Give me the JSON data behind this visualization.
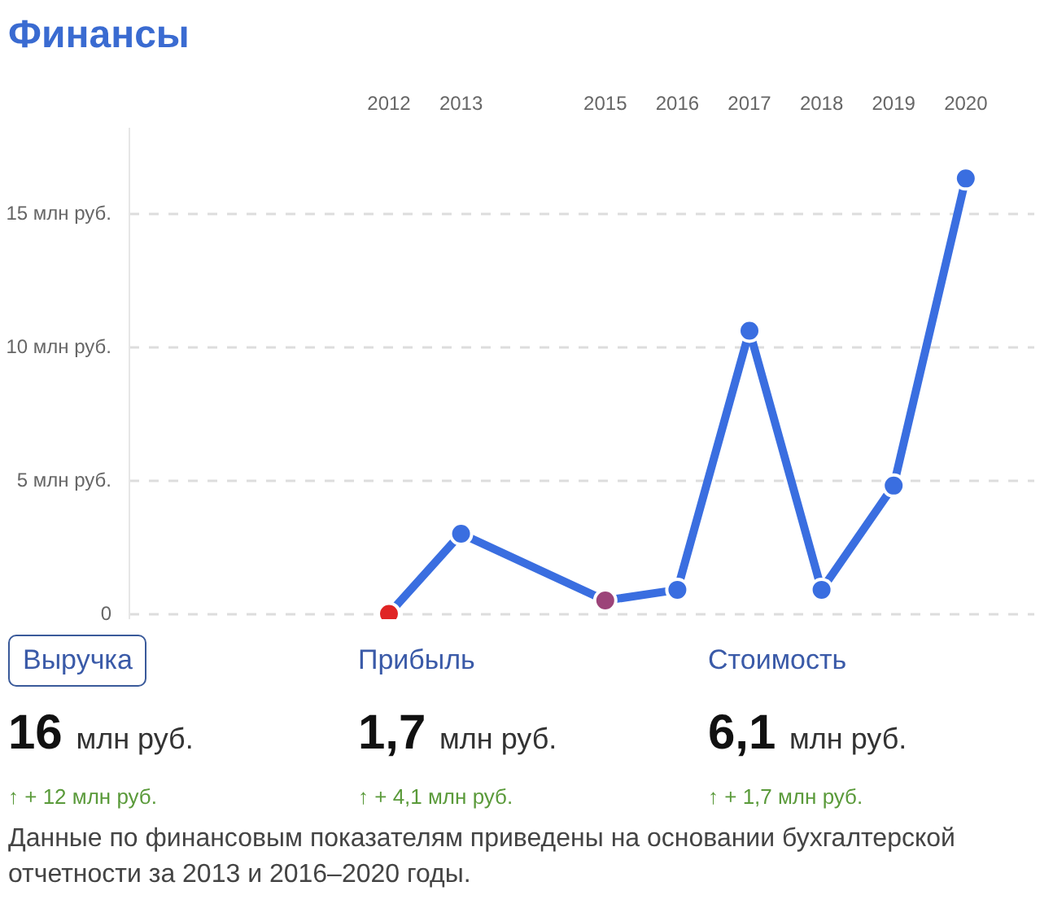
{
  "chart_data": {
    "type": "line",
    "title": "Финансы",
    "x": [
      2012,
      2013,
      2015,
      2016,
      2017,
      2018,
      2019,
      2020
    ],
    "series": [
      {
        "color": "#3a6ee0",
        "colors": [
          "#e02424",
          "#3a6ee0",
          "#9c4479",
          "#3a6ee0",
          "#3a6ee0",
          "#3a6ee0",
          "#3a6ee0",
          "#3a6ee0"
        ],
        "values": [
          0,
          3.0,
          0.5,
          0.9,
          10.6,
          0.9,
          4.8,
          16.3
        ]
      }
    ],
    "xlim": [
      2008.4,
      2020.95
    ],
    "xticks": [
      2012,
      2013,
      2015,
      2016,
      2017,
      2018,
      2019,
      2020
    ],
    "ylim": [
      -0.2,
      18.2
    ],
    "yticks": [
      0,
      {
        "value": 5,
        "label": "5 млн руб."
      },
      {
        "value": 10,
        "label": "10 млн руб."
      },
      {
        "value": 15,
        "label": "15 млн руб."
      }
    ],
    "grid": "y",
    "marker": "circle",
    "line_style": "solid",
    "annotations": [
      "Выручка",
      "16 млн руб.",
      "↑ + 12 млн руб.",
      "Прибыль",
      "1,7 млн руб.",
      "↑ + 4,1 млн руб.",
      "Стоимость",
      "6,1 млн руб.",
      "↑ + 1,7 млн руб.",
      "Данные по финансовым показателям приведены на основании бухгалтерской отчетности за 2013 и 2016–2020 годы."
    ]
  }
}
